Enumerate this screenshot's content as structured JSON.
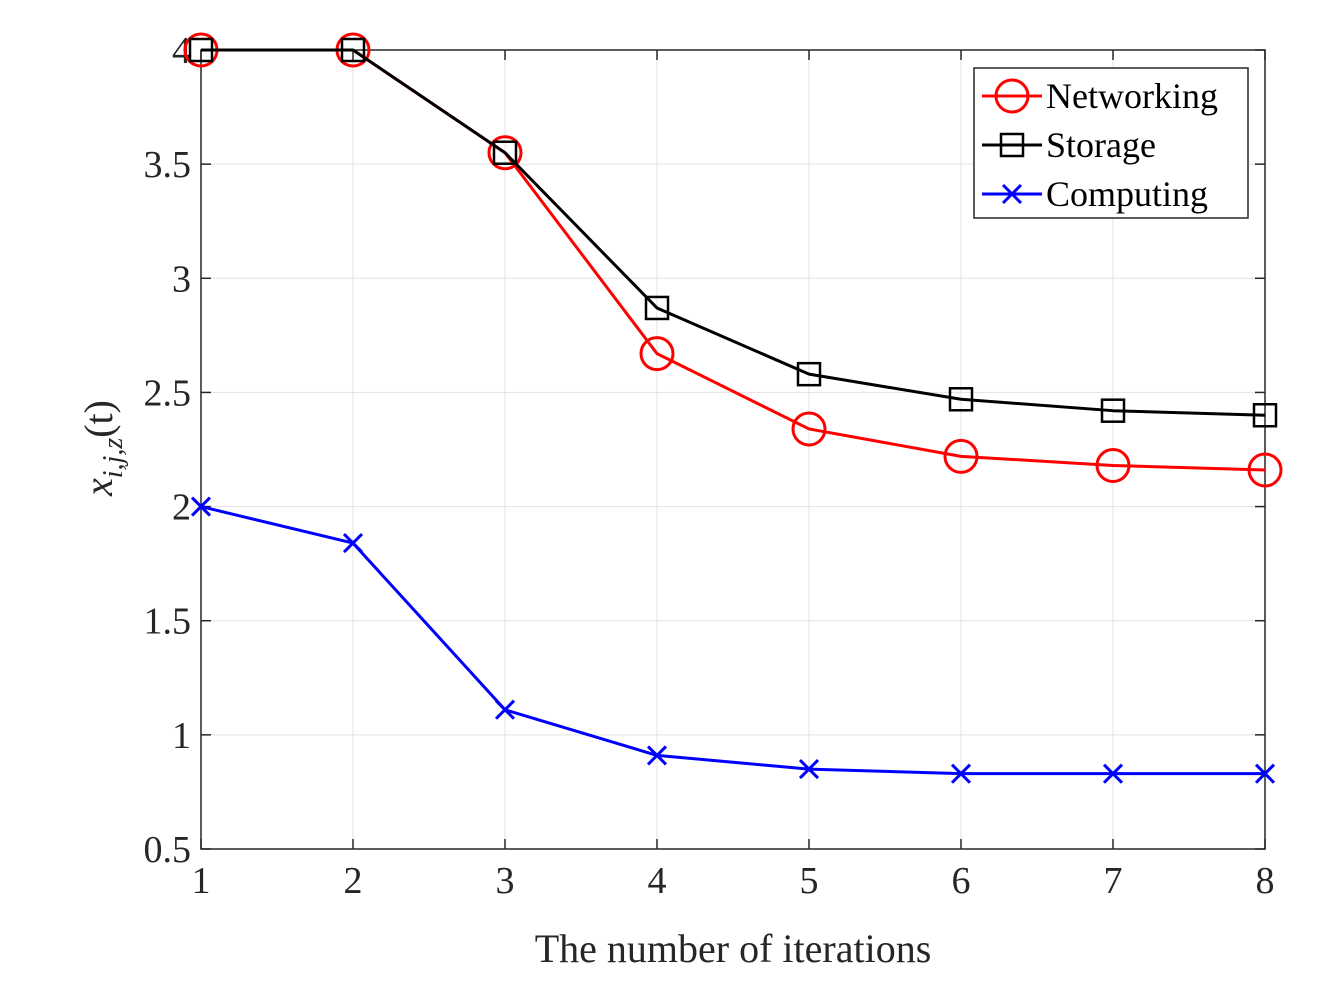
{
  "chart_data": {
    "type": "line",
    "x": [
      1,
      2,
      3,
      4,
      5,
      6,
      7,
      8
    ],
    "xlabel": "The number of iterations",
    "ylabel_base": "x",
    "ylabel_sub": "i,j,z",
    "ylabel_arg": "(t)",
    "xlim": [
      1,
      8
    ],
    "ylim": [
      0.5,
      4
    ],
    "xticks": [
      "1",
      "2",
      "3",
      "4",
      "5",
      "6",
      "7",
      "8"
    ],
    "yticks": [
      "0.5",
      "1",
      "1.5",
      "2",
      "2.5",
      "3",
      "3.5",
      "4"
    ],
    "grid": true,
    "legend_position": "top-right",
    "series": [
      {
        "name": "Networking",
        "color": "#ff0000",
        "marker": "circle",
        "values": [
          4.0,
          4.0,
          3.55,
          2.67,
          2.34,
          2.22,
          2.18,
          2.16
        ]
      },
      {
        "name": "Storage",
        "color": "#000000",
        "marker": "square",
        "values": [
          4.0,
          4.0,
          3.55,
          2.87,
          2.58,
          2.47,
          2.42,
          2.4
        ]
      },
      {
        "name": "Computing",
        "color": "#0000ff",
        "marker": "x",
        "values": [
          2.0,
          1.84,
          1.11,
          0.91,
          0.85,
          0.83,
          0.83,
          0.83
        ]
      }
    ]
  }
}
